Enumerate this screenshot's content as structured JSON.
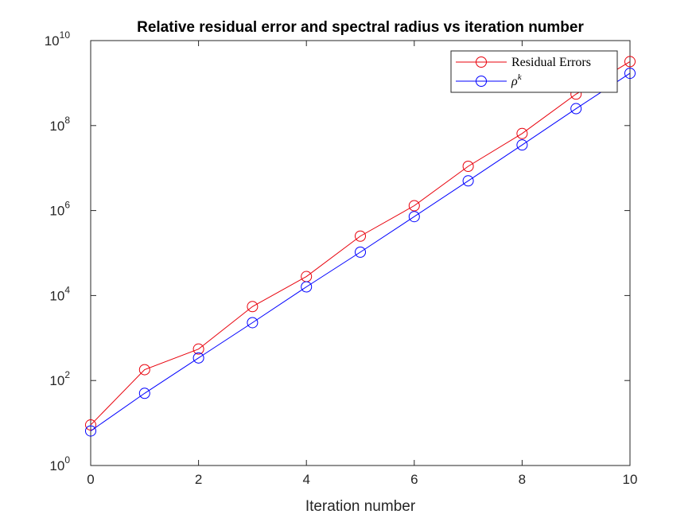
{
  "chart_data": {
    "type": "line",
    "title": "Relative residual error and spectral radius vs iteration number",
    "xlabel": "Iteration number",
    "ylabel": "",
    "xlim": [
      0,
      10
    ],
    "ylim": [
      1,
      10000000000
    ],
    "yscale": "log",
    "grid": false,
    "legend_position": "top-right",
    "x": [
      0,
      1,
      2,
      3,
      4,
      5,
      6,
      7,
      8,
      9,
      10
    ],
    "x_ticks": [
      "0",
      "2",
      "4",
      "6",
      "8",
      "10"
    ],
    "y_ticks": [
      {
        "base": "10",
        "exp": "0"
      },
      {
        "base": "10",
        "exp": "2"
      },
      {
        "base": "10",
        "exp": "4"
      },
      {
        "base": "10",
        "exp": "6"
      },
      {
        "base": "10",
        "exp": "8"
      },
      {
        "base": "10",
        "exp": "10"
      }
    ],
    "series": [
      {
        "name": "Residual Errors",
        "color": "#e8000b",
        "marker": "circle",
        "values": [
          9,
          180,
          550,
          5500,
          28000,
          250000,
          1300000,
          11000000,
          65000000,
          550000000,
          3200000000
        ]
      },
      {
        "name": "ρ",
        "name_superscript": "k",
        "color": "#0000ff",
        "marker": "circle",
        "values": [
          6.5,
          50,
          340,
          2300,
          16000,
          105000,
          720000,
          5000000,
          35000000,
          250000000,
          1700000000
        ]
      }
    ]
  }
}
